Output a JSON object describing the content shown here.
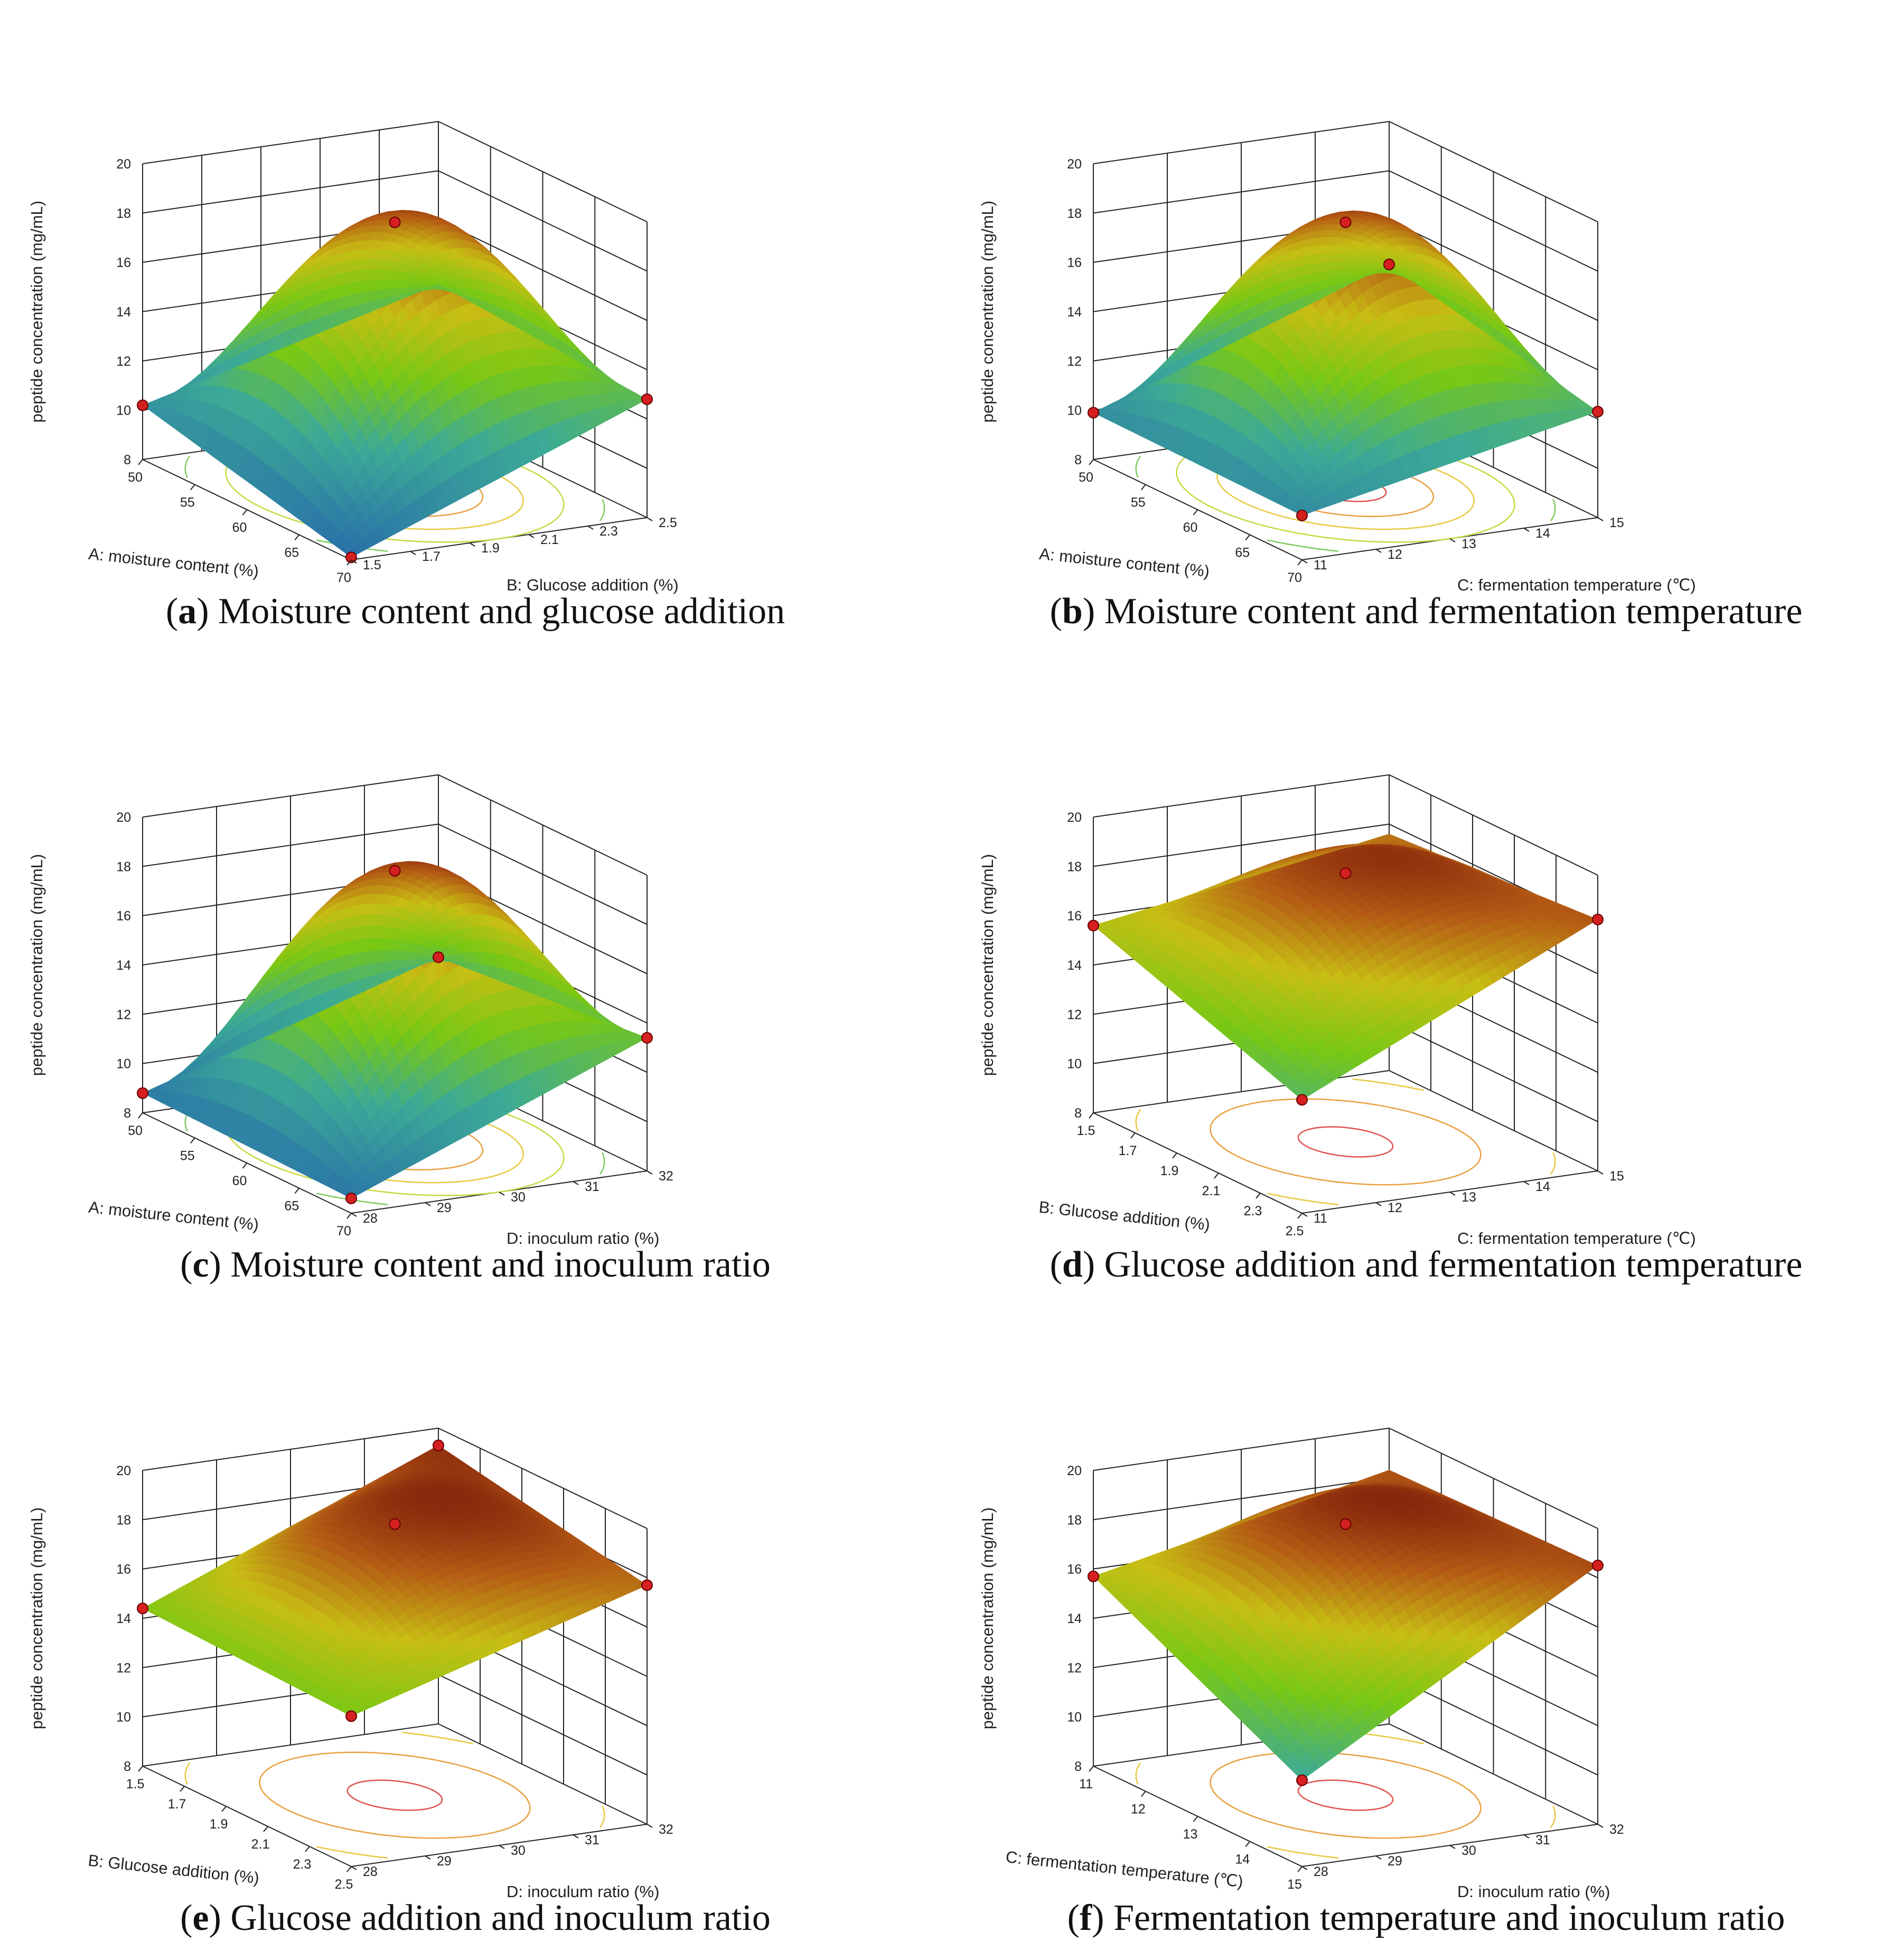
{
  "chart_data": [
    {
      "type": "surface3d",
      "panel_letter": "a",
      "caption": "Moisture content and glucose addition",
      "xlabel": "A: moisture content (%)",
      "ylabel": "B: Glucose addition (%)",
      "zlabel": "peptide concentration (mg/mL)",
      "x_ticks": [
        "50",
        "55",
        "60",
        "65",
        "70"
      ],
      "y_ticks": [
        "1.5",
        "1.7",
        "1.9",
        "2.1",
        "2.3",
        "2.5"
      ],
      "z_ticks": [
        "8",
        "10",
        "12",
        "14",
        "16",
        "18",
        "20"
      ],
      "xlim": [
        50,
        70
      ],
      "ylim": [
        1.5,
        2.5
      ],
      "zlim": [
        8,
        20
      ],
      "corners": {
        "x_low_y_low": 10.2,
        "x_high_y_low": 8.1,
        "x_low_y_high": 13.4,
        "x_high_y_high": 12.8
      },
      "peak": {
        "x": 60,
        "y": 2.0,
        "z": 18.8
      },
      "design_points": [
        {
          "x": 50,
          "y": 1.5,
          "z": 10.2
        },
        {
          "x": 70,
          "y": 1.5,
          "z": 8.1
        },
        {
          "x": 70,
          "y": 2.5,
          "z": 12.8
        },
        {
          "x": 60,
          "y": 2.0,
          "z": 18.8
        }
      ],
      "contour_style": "elongated"
    },
    {
      "type": "surface3d",
      "panel_letter": "b",
      "caption": "Moisture content and fermentation temperature",
      "xlabel": "A: moisture content (%)",
      "ylabel": "C: fermentation temperature (℃)",
      "zlabel": "peptide concentration (mg/mL)",
      "x_ticks": [
        "50",
        "55",
        "60",
        "65",
        "70"
      ],
      "y_ticks": [
        "11",
        "12",
        "13",
        "14",
        "15"
      ],
      "z_ticks": [
        "8",
        "10",
        "12",
        "14",
        "16",
        "18",
        "20"
      ],
      "xlim": [
        50,
        70
      ],
      "ylim": [
        11,
        15
      ],
      "zlim": [
        8,
        20
      ],
      "corners": {
        "x_low_y_low": 9.9,
        "x_high_y_low": 9.8,
        "x_low_y_high": 14.2,
        "x_high_y_high": 12.3
      },
      "peak": {
        "x": 60,
        "y": 13,
        "z": 18.8
      },
      "design_points": [
        {
          "x": 50,
          "y": 11,
          "z": 9.9
        },
        {
          "x": 70,
          "y": 11,
          "z": 9.8
        },
        {
          "x": 70,
          "y": 15,
          "z": 12.3
        },
        {
          "x": 50,
          "y": 15,
          "z": 14.2
        },
        {
          "x": 60,
          "y": 13,
          "z": 18.8
        }
      ],
      "contour_style": "elongated"
    },
    {
      "type": "surface3d",
      "panel_letter": "c",
      "caption": "Moisture content and inoculum ratio",
      "xlabel": "A: moisture content (%)",
      "ylabel": "D: inoculum ratio (%)",
      "zlabel": "peptide concentration (mg/mL)",
      "x_ticks": [
        "50",
        "55",
        "60",
        "65",
        "70"
      ],
      "y_ticks": [
        "28",
        "29",
        "30",
        "31",
        "32"
      ],
      "z_ticks": [
        "8",
        "10",
        "12",
        "14",
        "16",
        "18",
        "20"
      ],
      "xlim": [
        50,
        70
      ],
      "ylim": [
        28,
        32
      ],
      "zlim": [
        8,
        20
      ],
      "corners": {
        "x_low_y_low": 8.8,
        "x_high_y_low": 8.6,
        "x_low_y_high": 12.6,
        "x_high_y_high": 13.4
      },
      "peak": {
        "x": 60,
        "y": 30,
        "z": 19.0
      },
      "design_points": [
        {
          "x": 50,
          "y": 28,
          "z": 8.8
        },
        {
          "x": 70,
          "y": 28,
          "z": 8.6
        },
        {
          "x": 70,
          "y": 32,
          "z": 13.4
        },
        {
          "x": 50,
          "y": 32,
          "z": 12.6
        },
        {
          "x": 60,
          "y": 30,
          "z": 19.0
        }
      ],
      "contour_style": "elongated"
    },
    {
      "type": "surface3d",
      "panel_letter": "d",
      "caption": "Glucose addition and fermentation temperature",
      "xlabel": "B: Glucose addition (%)",
      "ylabel": "C: fermentation temperature (℃)",
      "zlabel": "peptide concentration (mg/mL)",
      "x_ticks": [
        "1.5",
        "1.7",
        "1.9",
        "2.1",
        "2.3",
        "2.5"
      ],
      "y_ticks": [
        "11",
        "12",
        "13",
        "14",
        "15"
      ],
      "z_ticks": [
        "8",
        "10",
        "12",
        "14",
        "16",
        "18",
        "20"
      ],
      "xlim": [
        1.5,
        2.5
      ],
      "ylim": [
        11,
        15
      ],
      "zlim": [
        8,
        20
      ],
      "corners": {
        "x_low_y_low": 15.6,
        "x_high_y_low": 12.6,
        "x_low_y_high": 17.6,
        "x_high_y_high": 18.2
      },
      "peak": {
        "x": 2.0,
        "y": 13,
        "z": 18.9
      },
      "design_points": [
        {
          "x": 1.5,
          "y": 11,
          "z": 15.6
        },
        {
          "x": 2.5,
          "y": 11,
          "z": 12.6
        },
        {
          "x": 2.5,
          "y": 15,
          "z": 18.2
        },
        {
          "x": 2.0,
          "y": 13,
          "z": 18.9
        }
      ],
      "contour_style": "flat"
    },
    {
      "type": "surface3d",
      "panel_letter": "e",
      "caption": "Glucose addition and inoculum ratio",
      "xlabel": "B: Glucose addition (%)",
      "ylabel": "D: inoculum ratio (%)",
      "zlabel": "peptide concentration (mg/mL)",
      "x_ticks": [
        "1.5",
        "1.7",
        "1.9",
        "2.1",
        "2.3",
        "2.5"
      ],
      "y_ticks": [
        "28",
        "29",
        "30",
        "31",
        "32"
      ],
      "z_ticks": [
        "8",
        "10",
        "12",
        "14",
        "16",
        "18",
        "20"
      ],
      "xlim": [
        1.5,
        2.5
      ],
      "ylim": [
        28,
        32
      ],
      "zlim": [
        8,
        20
      ],
      "corners": {
        "x_low_y_low": 14.4,
        "x_high_y_low": 14.1,
        "x_low_y_high": 19.3,
        "x_high_y_high": 17.7
      },
      "peak": {
        "x": 2.0,
        "y": 30,
        "z": 19.0
      },
      "design_points": [
        {
          "x": 1.5,
          "y": 28,
          "z": 14.4
        },
        {
          "x": 2.5,
          "y": 28,
          "z": 14.1
        },
        {
          "x": 2.5,
          "y": 32,
          "z": 17.7
        },
        {
          "x": 1.5,
          "y": 32,
          "z": 19.3
        },
        {
          "x": 2.0,
          "y": 30,
          "z": 19.0
        }
      ],
      "contour_style": "flat"
    },
    {
      "type": "surface3d",
      "panel_letter": "f",
      "caption": "Fermentation temperature and inoculum ratio",
      "xlabel": "C: fermentation temperature (℃)",
      "ylabel": "D: inoculum ratio (%)",
      "zlabel": "peptide concentration (mg/mL)",
      "x_ticks": [
        "11",
        "12",
        "13",
        "14",
        "15"
      ],
      "y_ticks": [
        "28",
        "29",
        "30",
        "31",
        "32"
      ],
      "z_ticks": [
        "8",
        "10",
        "12",
        "14",
        "16",
        "18",
        "20"
      ],
      "xlim": [
        11,
        15
      ],
      "ylim": [
        28,
        32
      ],
      "zlim": [
        8,
        20
      ],
      "corners": {
        "x_low_y_low": 15.7,
        "x_high_y_low": 11.5,
        "x_low_y_high": 18.3,
        "x_high_y_high": 18.5
      },
      "peak": {
        "x": 13,
        "y": 30,
        "z": 19.0
      },
      "design_points": [
        {
          "x": 11,
          "y": 28,
          "z": 15.7
        },
        {
          "x": 15,
          "y": 28,
          "z": 11.5
        },
        {
          "x": 15,
          "y": 32,
          "z": 18.5
        },
        {
          "x": 13,
          "y": 30,
          "z": 19.0
        }
      ],
      "contour_style": "flat"
    }
  ]
}
